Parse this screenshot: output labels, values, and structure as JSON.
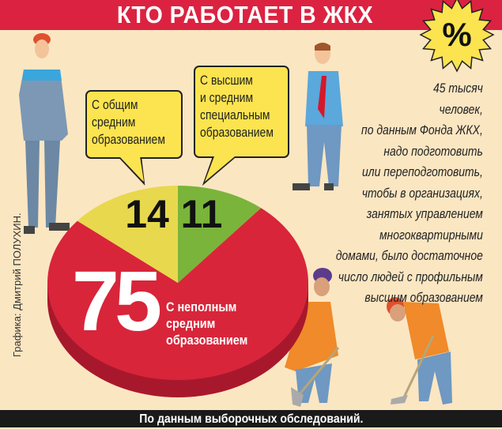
{
  "title": "КТО РАБОТАЕТ В ЖКХ",
  "badge": "%",
  "side_text": [
    "45 тысяч",
    "человек,",
    "по данным Фонда ЖКХ,",
    "надо подготовить",
    "или переподготовить,",
    "чтобы в организациях,",
    "занятых управлением",
    "многоквартирными",
    "домами, было достаточное",
    "число людей с профильным",
    "высшим образованием"
  ],
  "credit": "Графика: Дмитрий ПОЛУХИН.",
  "footer": "По данным выборочных обследований.",
  "colors": {
    "red": "#d8253a",
    "yellow": "#e8d84e",
    "green": "#7ab43a",
    "title_bar": "#dc2241",
    "background": "#fbe6c2"
  },
  "chart_data": {
    "type": "pie",
    "unit": "%",
    "slices": [
      {
        "label": "С неполным средним образованием",
        "label_lines": [
          "С неполным",
          "средним",
          "образованием"
        ],
        "value": 75,
        "value_text": "75",
        "color": "#d8253a"
      },
      {
        "label": "С общим средним образованием",
        "label_lines": [
          "С общим",
          "средним",
          "образованием"
        ],
        "value": 14,
        "value_text": "14",
        "color": "#e8d84e"
      },
      {
        "label": "С высшим и средним специальным образованием",
        "label_lines": [
          "С высшим",
          "и средним",
          "специальным",
          "образованием"
        ],
        "value": 11,
        "value_text": "11",
        "color": "#7ab43a"
      }
    ]
  }
}
